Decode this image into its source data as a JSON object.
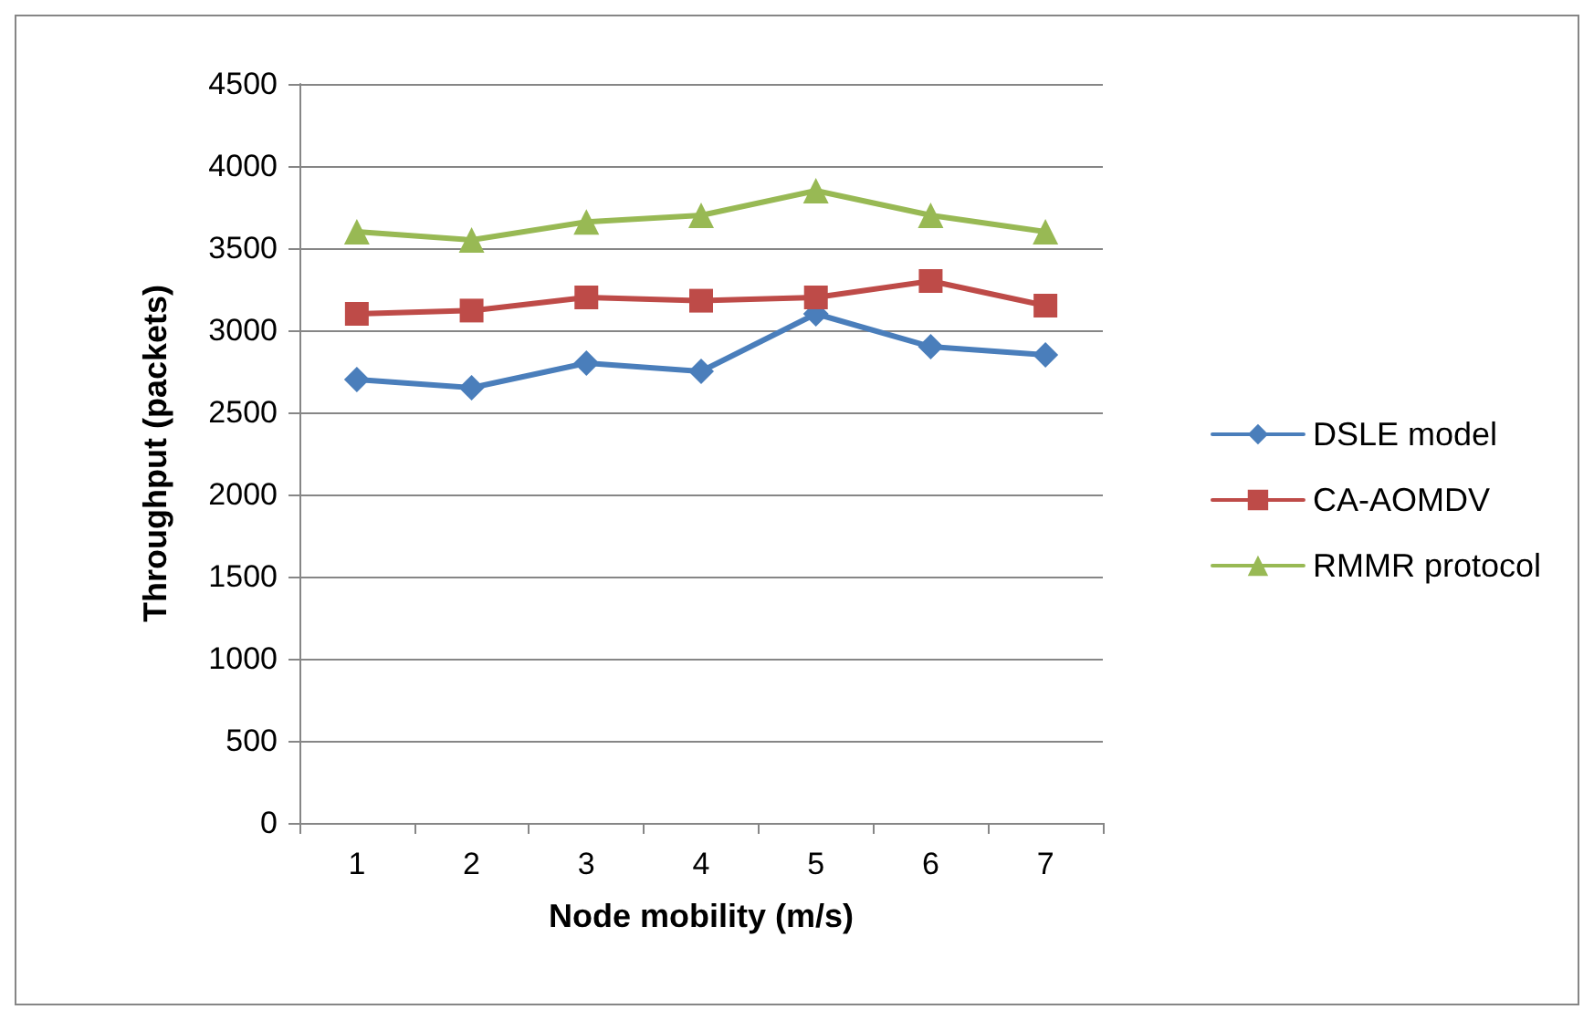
{
  "chart_data": {
    "type": "line",
    "xlabel": "Node mobility (m/s)",
    "ylabel": "Throughput (packets)",
    "categories": [
      "1",
      "2",
      "3",
      "4",
      "5",
      "6",
      "7"
    ],
    "series": [
      {
        "name": "DSLE model",
        "color": "#4a7ebb",
        "marker": "diamond",
        "values": [
          2700,
          2650,
          2800,
          2750,
          3100,
          2900,
          2850
        ]
      },
      {
        "name": "CA-AOMDV",
        "color": "#be4b48",
        "marker": "square",
        "values": [
          3100,
          3120,
          3200,
          3180,
          3200,
          3300,
          3150
        ]
      },
      {
        "name": "RMMR protocol",
        "color": "#98b954",
        "marker": "triangle",
        "values": [
          3600,
          3550,
          3660,
          3700,
          3850,
          3700,
          3600
        ]
      }
    ],
    "ylim": [
      0,
      4500
    ],
    "yticks": [
      0,
      500,
      1000,
      1500,
      2000,
      2500,
      3000,
      3500,
      4000,
      4500
    ],
    "grid": "y",
    "legend": "right",
    "line_style": "solid"
  }
}
